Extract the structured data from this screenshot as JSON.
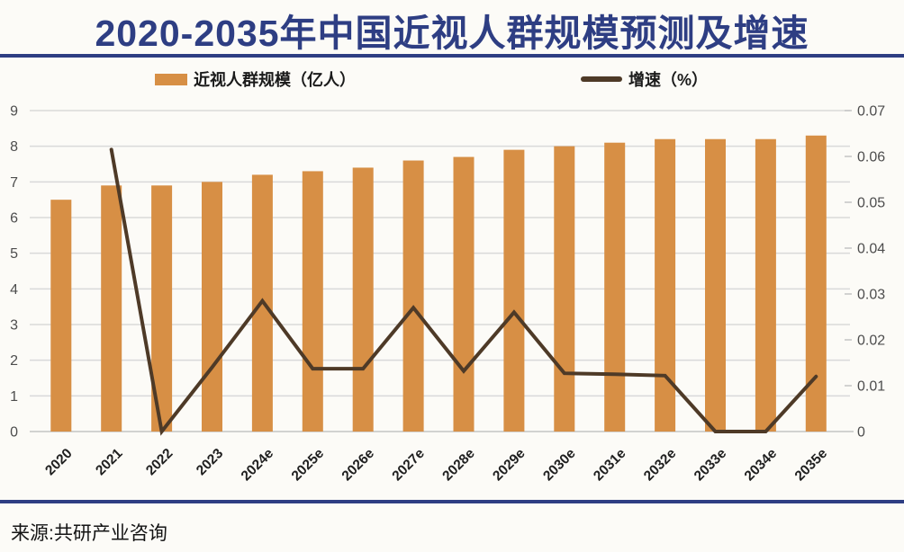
{
  "title": {
    "text": "2020-2035年中国近视人群规模预测及增速"
  },
  "legend": {
    "bar_label": "近视人群规模（亿人）",
    "line_label": "增速（%）"
  },
  "source": {
    "text": "来源:共研产业咨询"
  },
  "colors": {
    "title": "#2e3e83",
    "rule": "#2e3e83",
    "bar": "#d78f45",
    "line": "#4e3a27",
    "gridline": "#d9d9d9",
    "axis_line": "#c4c4c4",
    "axis_text": "#4d4d4d",
    "x_text": "#1f1f1f",
    "background": "#fcfbf7"
  },
  "chart_data": {
    "type": "combo",
    "categories": [
      "2020",
      "2021",
      "2022",
      "2023",
      "2024e",
      "2025e",
      "2026e",
      "2027e",
      "2028e",
      "2029e",
      "2030e",
      "2031e",
      "2032e",
      "2033e",
      "2034e",
      "2035e"
    ],
    "series": [
      {
        "name": "近视人群规模（亿人）",
        "type": "bar",
        "axis": "left",
        "values": [
          6.5,
          6.9,
          6.9,
          7.0,
          7.2,
          7.3,
          7.4,
          7.6,
          7.7,
          7.9,
          8.0,
          8.1,
          8.2,
          8.2,
          8.2,
          8.3
        ]
      },
      {
        "name": "增速（%）",
        "type": "line",
        "axis": "right",
        "values": [
          null,
          0.0615,
          0,
          0.014,
          0.0285,
          0.0137,
          0.0137,
          0.027,
          0.0132,
          0.026,
          0.0127,
          0.0125,
          0.0122,
          0,
          0,
          0.012
        ]
      }
    ],
    "left_axis": {
      "min": 0,
      "max": 9,
      "ticks": [
        0,
        1,
        2,
        3,
        4,
        5,
        6,
        7,
        8,
        9
      ]
    },
    "right_axis": {
      "min": 0,
      "max": 0.07,
      "ticks": [
        0,
        0.01,
        0.02,
        0.03,
        0.04,
        0.05,
        0.06,
        0.07
      ],
      "tick_labels": [
        "0",
        "0.01",
        "0.02",
        "0.03",
        "0.04",
        "0.05",
        "0.06",
        "0.07"
      ]
    },
    "grid": true,
    "legend_position": "top",
    "x_label_rotation": -45
  }
}
